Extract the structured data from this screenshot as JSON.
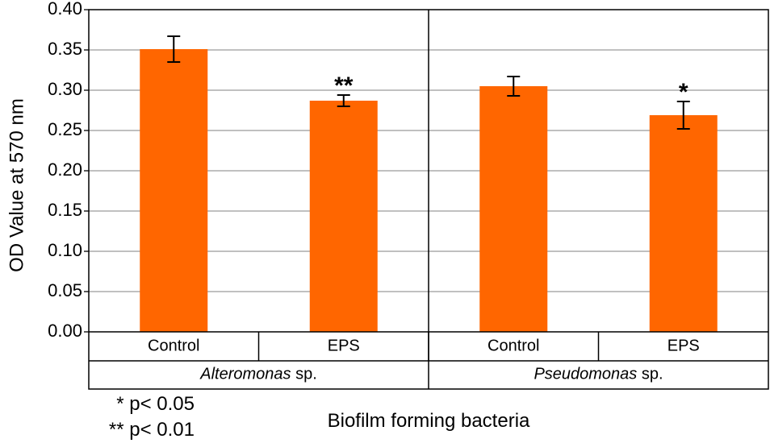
{
  "chart_data": {
    "type": "bar",
    "ylabel": "OD Value at 570 nm",
    "xlabel": "Biofilm forming bacteria",
    "ylim": [
      0,
      0.4
    ],
    "ytick_values": [
      0.0,
      0.05,
      0.1,
      0.15,
      0.2,
      0.25,
      0.3,
      0.35,
      0.4
    ],
    "ytick_labels": [
      "0.00",
      "0.05",
      "0.10",
      "0.15",
      "0.20",
      "0.25",
      "0.30",
      "0.35",
      "0.40"
    ],
    "grid": true,
    "bar_color": "#ff6600",
    "categories": [
      "Control",
      "EPS",
      "Control",
      "EPS"
    ],
    "groups": [
      {
        "label_italic": "Alteromonas",
        "label_suffix": " sp.",
        "span": 2
      },
      {
        "label_italic": "Pseudomonas",
        "label_suffix": " sp.",
        "span": 2
      }
    ],
    "values": [
      0.351,
      0.287,
      0.305,
      0.269
    ],
    "errors": [
      0.016,
      0.007,
      0.012,
      0.017
    ],
    "significance": [
      "",
      "**",
      "",
      "*"
    ],
    "notes": [
      "* p< 0.05",
      "** p< 0.01"
    ]
  }
}
